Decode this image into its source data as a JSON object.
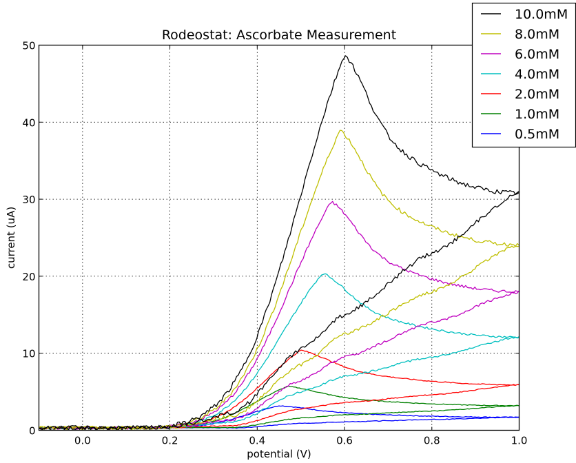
{
  "chart_data": {
    "type": "line",
    "title": "Rodeostat: Ascorbate Measurement",
    "xlabel": "potential (V)",
    "ylabel": "current (uA)",
    "xlim": [
      -0.1,
      1.0
    ],
    "ylim": [
      0,
      50
    ],
    "xticks": [
      "0.0",
      "0.2",
      "0.4",
      "0.6",
      "0.8",
      "1.0"
    ],
    "xtick_values": [
      0.0,
      0.2,
      0.4,
      0.6,
      0.8,
      1.0
    ],
    "yticks": [
      "0",
      "10",
      "20",
      "30",
      "40",
      "50"
    ],
    "ytick_values": [
      0,
      10,
      20,
      30,
      40,
      50
    ],
    "grid": true,
    "legend_position": "upper right (outside top)",
    "series": [
      {
        "name": "10.0mM",
        "color": "#000000",
        "peak_x": 0.6,
        "peak_y": 48.8,
        "end_y": 30.8,
        "onset": 0.17,
        "return_x_at_0": 0.27,
        "return_mid": [
          [
            0.5,
            10.5
          ],
          [
            0.6,
            15.0
          ],
          [
            0.8,
            23.0
          ]
        ]
      },
      {
        "name": "8.0mM",
        "color": "#bfbf00",
        "peak_x": 0.59,
        "peak_y": 39.0,
        "end_y": 24.1,
        "onset": 0.17,
        "return_x_at_0": 0.27,
        "return_mid": [
          [
            0.5,
            8.5
          ],
          [
            0.6,
            12.5
          ],
          [
            0.8,
            18.0
          ]
        ]
      },
      {
        "name": "6.0mM",
        "color": "#bf00bf",
        "peak_x": 0.57,
        "peak_y": 29.7,
        "end_y": 18.0,
        "onset": 0.17,
        "return_x_at_0": 0.27,
        "return_mid": [
          [
            0.5,
            6.5
          ],
          [
            0.6,
            9.5
          ],
          [
            0.8,
            14.0
          ]
        ]
      },
      {
        "name": "4.0mM",
        "color": "#00bfbf",
        "peak_x": 0.55,
        "peak_y": 20.4,
        "end_y": 12.1,
        "onset": 0.17,
        "return_x_at_0": 0.27,
        "return_mid": [
          [
            0.5,
            5.0
          ],
          [
            0.6,
            7.0
          ],
          [
            0.8,
            9.5
          ]
        ]
      },
      {
        "name": "2.0mM",
        "color": "#ff0000",
        "peak_x": 0.5,
        "peak_y": 10.4,
        "end_y": 5.9,
        "onset": 0.17,
        "return_x_at_0": 0.27,
        "return_mid": [
          [
            0.5,
            2.8
          ],
          [
            0.6,
            3.6
          ],
          [
            0.8,
            4.6
          ]
        ]
      },
      {
        "name": "1.0mM",
        "color": "#008000",
        "peak_x": 0.47,
        "peak_y": 5.7,
        "end_y": 3.2,
        "onset": 0.17,
        "return_x_at_0": 0.27,
        "return_mid": [
          [
            0.5,
            1.6
          ],
          [
            0.6,
            2.0
          ],
          [
            0.8,
            2.5
          ]
        ]
      },
      {
        "name": "0.5mM",
        "color": "#0000ff",
        "peak_x": 0.45,
        "peak_y": 3.2,
        "end_y": 1.7,
        "onset": 0.17,
        "return_x_at_0": 0.27,
        "return_mid": [
          [
            0.5,
            0.9
          ],
          [
            0.6,
            1.1
          ],
          [
            0.8,
            1.4
          ]
        ]
      }
    ]
  }
}
